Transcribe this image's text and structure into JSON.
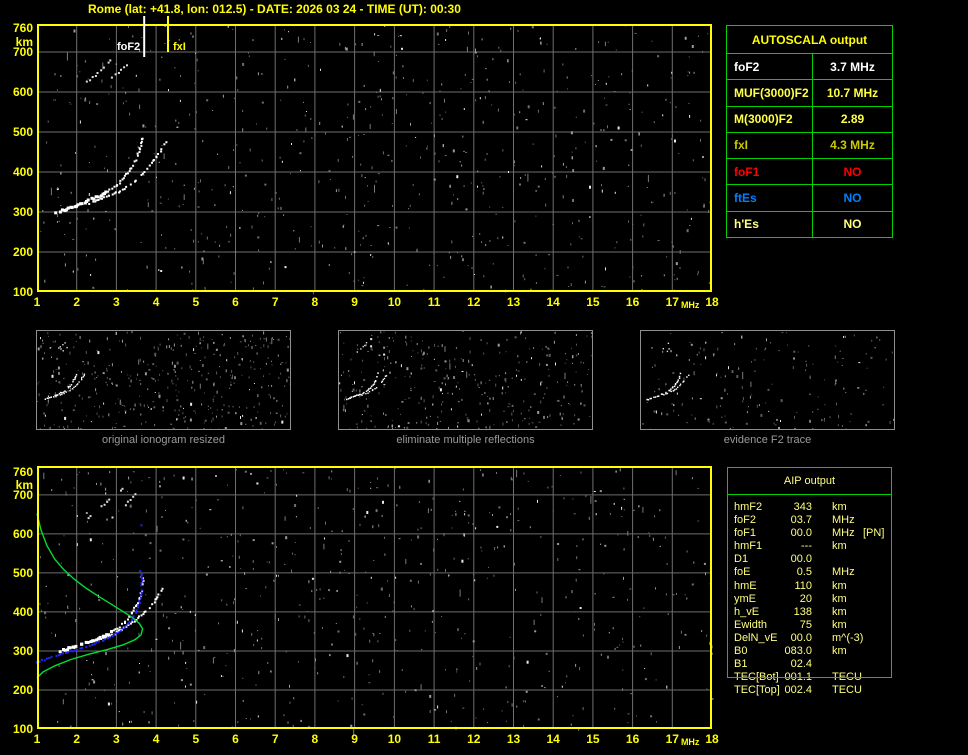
{
  "title": "Rome (lat: +41.8, lon: 012.5) - DATE: 2026 03 24 - TIME (UT): 00:30",
  "colors": {
    "accent_yellow": "#ffff00",
    "grid_gray": "#6e6e6e",
    "border_green": "#00d000",
    "pale_yellow": "#ffff80",
    "trace_white": "#ffffff",
    "profile_green": "#00dd33",
    "fit_blue": "#2323ff",
    "caption_gray": "#9a9a9a"
  },
  "autoscala_table": {
    "header": "AUTOSCALA output",
    "rows": [
      {
        "label": "foF2",
        "value": "3.7 MHz",
        "color": "#ffffff"
      },
      {
        "label": "MUF(3000)F2",
        "value": "10.7 MHz",
        "color": "#ffff44"
      },
      {
        "label": "M(3000)F2",
        "value": "2.89",
        "color": "#ffff44"
      },
      {
        "label": "fxI",
        "value": "4.3 MHz",
        "color": "#c9c900"
      },
      {
        "label": "foF1",
        "value": "NO",
        "color": "#ff0000"
      },
      {
        "label": "ftEs",
        "value": "NO",
        "color": "#0080ff"
      },
      {
        "label": "h'Es",
        "value": "NO",
        "color": "#ffff80"
      }
    ]
  },
  "aip_table": {
    "header": "AIP output",
    "rows": [
      {
        "label": "hmF2",
        "value": "343",
        "unit": "km",
        "extra": ""
      },
      {
        "label": "foF2",
        "value": "03.7",
        "unit": "MHz",
        "extra": ""
      },
      {
        "label": "foF1",
        "value": "00.0",
        "unit": "MHz",
        "extra": "[PN]"
      },
      {
        "label": "hmF1",
        "value": "---",
        "unit": "km",
        "extra": ""
      },
      {
        "label": "D1",
        "value": "00.0",
        "unit": "",
        "extra": ""
      },
      {
        "label": "foE",
        "value": "0.5",
        "unit": "MHz",
        "extra": ""
      },
      {
        "label": "hmE",
        "value": "110",
        "unit": "km",
        "extra": ""
      },
      {
        "label": "ymE",
        "value": "20",
        "unit": "km",
        "extra": ""
      },
      {
        "label": "h_vE",
        "value": "138",
        "unit": "km",
        "extra": ""
      },
      {
        "label": "Ewidth",
        "value": "75",
        "unit": "km",
        "extra": ""
      },
      {
        "label": "DelN_vE",
        "value": "00.0",
        "unit": "m^(-3)",
        "extra": ""
      },
      {
        "label": "B0",
        "value": "083.0",
        "unit": "km",
        "extra": ""
      },
      {
        "label": "B1",
        "value": "02.4",
        "unit": "",
        "extra": ""
      },
      {
        "label": "TEC[Bot]",
        "value": "001.1",
        "unit": "TECU",
        "extra": ""
      },
      {
        "label": "TEC[Top]",
        "value": "002.4",
        "unit": "TECU",
        "extra": ""
      }
    ]
  },
  "panels": [
    {
      "caption": "original ionogram resized"
    },
    {
      "caption": "eliminate multiple reflections"
    },
    {
      "caption": "evidence F2 trace"
    }
  ],
  "chart_data": {
    "type": "scatter",
    "xlabel": "MHz",
    "ylabel": "km",
    "x_range": [
      1,
      18
    ],
    "y_range": [
      100,
      760
    ],
    "grid": "on",
    "x_ticks": [
      {
        "label": "1",
        "f": 1
      },
      {
        "label": "2",
        "f": 2
      },
      {
        "label": "3",
        "f": 3
      },
      {
        "label": "4",
        "f": 4
      },
      {
        "label": "5",
        "f": 5
      },
      {
        "label": "6",
        "f": 6
      },
      {
        "label": "7",
        "f": 7
      },
      {
        "label": "8",
        "f": 8
      },
      {
        "label": "9",
        "f": 9
      },
      {
        "label": "10",
        "f": 10
      },
      {
        "label": "11",
        "f": 11
      },
      {
        "label": "12",
        "f": 12
      },
      {
        "label": "13",
        "f": 13
      },
      {
        "label": "14",
        "f": 14
      },
      {
        "label": "15",
        "f": 15
      },
      {
        "label": "16",
        "f": 16
      },
      {
        "label": "17",
        "f": 17
      },
      {
        "label": "MHz",
        "f": 17.45,
        "small": true
      },
      {
        "label": "18",
        "f": 18
      }
    ],
    "y_ticks": [
      {
        "label": "760",
        "km": 760
      },
      {
        "label": "km",
        "km": 725
      },
      {
        "label": "700",
        "km": 700
      },
      {
        "label": "600",
        "km": 600
      },
      {
        "label": "500",
        "km": 500
      },
      {
        "label": "400",
        "km": 400
      },
      {
        "label": "300",
        "km": 300
      },
      {
        "label": "200",
        "km": 200
      },
      {
        "label": "100",
        "km": 100
      }
    ],
    "top_ionogram": {
      "foF2_marker": {
        "label": "foF2",
        "MHz": 3.7
      },
      "fxI_marker": {
        "label": "fxI",
        "MHz": 4.3
      },
      "o_trace": [
        [
          1.45,
          297
        ],
        [
          1.7,
          305
        ],
        [
          1.95,
          314
        ],
        [
          2.2,
          324
        ],
        [
          2.45,
          334
        ],
        [
          2.7,
          346
        ],
        [
          2.95,
          362
        ],
        [
          3.15,
          380
        ],
        [
          3.3,
          398
        ],
        [
          3.45,
          420
        ],
        [
          3.55,
          444
        ],
        [
          3.62,
          466
        ],
        [
          3.66,
          490
        ]
      ],
      "x_trace": [
        [
          2.3,
          322
        ],
        [
          2.55,
          330
        ],
        [
          2.8,
          340
        ],
        [
          3.05,
          350
        ],
        [
          3.3,
          364
        ],
        [
          3.5,
          380
        ],
        [
          3.7,
          400
        ],
        [
          3.9,
          422
        ],
        [
          4.05,
          444
        ],
        [
          4.18,
          462
        ],
        [
          4.27,
          478
        ]
      ],
      "second_reflections": [
        [
          [
            2.2,
            618
          ],
          [
            3.0,
            690
          ]
        ],
        [
          [
            2.75,
            626
          ],
          [
            3.35,
            672
          ]
        ]
      ]
    },
    "bottom_ionogram": {
      "o_trace": [
        [
          1.6,
          300
        ],
        [
          1.95,
          311
        ],
        [
          2.3,
          322
        ],
        [
          2.65,
          336
        ],
        [
          2.95,
          352
        ],
        [
          3.2,
          372
        ],
        [
          3.38,
          394
        ],
        [
          3.52,
          418
        ],
        [
          3.6,
          442
        ],
        [
          3.65,
          465
        ],
        [
          3.68,
          490
        ]
      ],
      "x_trace": [
        [
          2.6,
          330
        ],
        [
          2.9,
          342
        ],
        [
          3.2,
          358
        ],
        [
          3.5,
          380
        ],
        [
          3.75,
          402
        ],
        [
          3.95,
          426
        ],
        [
          4.1,
          448
        ],
        [
          4.2,
          465
        ]
      ],
      "fit_trace_blue": [
        [
          1.0,
          272
        ],
        [
          1.3,
          281
        ],
        [
          1.6,
          291
        ],
        [
          1.9,
          300
        ],
        [
          2.2,
          309
        ],
        [
          2.5,
          320
        ],
        [
          2.78,
          332
        ],
        [
          3.0,
          345
        ],
        [
          3.2,
          360
        ],
        [
          3.38,
          378
        ],
        [
          3.5,
          398
        ],
        [
          3.58,
          422
        ],
        [
          3.62,
          448
        ],
        [
          3.64,
          475
        ],
        [
          3.65,
          503
        ]
      ],
      "fit_extra_points": [
        [
          3.63,
          622
        ],
        [
          3.6,
          505
        ]
      ],
      "profile_green": [
        [
          1.0,
          652
        ],
        [
          1.1,
          610
        ],
        [
          1.25,
          570
        ],
        [
          1.45,
          535
        ],
        [
          1.68,
          508
        ],
        [
          1.95,
          483
        ],
        [
          2.25,
          460
        ],
        [
          2.55,
          440
        ],
        [
          2.85,
          421
        ],
        [
          3.15,
          402
        ],
        [
          3.4,
          386
        ],
        [
          3.58,
          370
        ],
        [
          3.66,
          357
        ],
        [
          3.62,
          341
        ],
        [
          3.47,
          329
        ],
        [
          3.18,
          316
        ],
        [
          2.78,
          304
        ],
        [
          2.32,
          292
        ],
        [
          1.85,
          278
        ],
        [
          1.45,
          262
        ],
        [
          1.15,
          246
        ],
        [
          1.0,
          231
        ]
      ],
      "second_reflections": [
        [
          [
            2.3,
            640
          ],
          [
            3.3,
            728
          ]
        ],
        [
          [
            2.85,
            635
          ],
          [
            3.66,
            722
          ]
        ]
      ]
    }
  }
}
